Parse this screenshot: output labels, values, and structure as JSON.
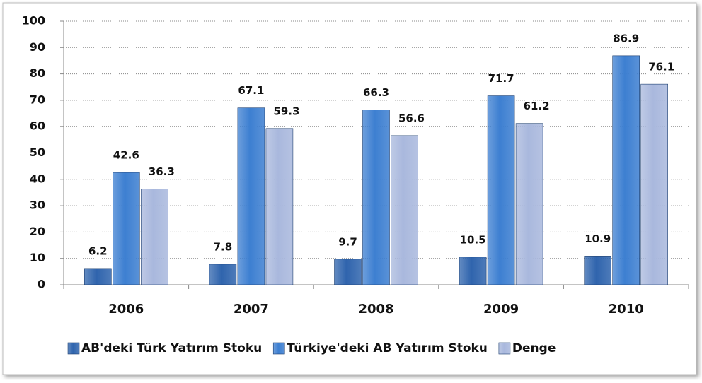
{
  "chart_data": {
    "type": "bar",
    "categories": [
      "2006",
      "2007",
      "2008",
      "2009",
      "2010"
    ],
    "series": [
      {
        "name": "AB'deki Türk Yatırım Stoku",
        "color": "#2f64ad",
        "values": [
          6.2,
          7.8,
          9.7,
          10.5,
          10.9
        ]
      },
      {
        "name": "Türkiye'deki AB Yatırım Stoku",
        "color": "#3d7fd1",
        "values": [
          42.6,
          67.1,
          66.3,
          71.7,
          86.9
        ]
      },
      {
        "name": "Denge",
        "color": "#a9b8dd",
        "values": [
          36.3,
          59.3,
          56.6,
          61.2,
          76.1
        ]
      }
    ],
    "ylim": [
      0,
      100
    ],
    "yticks": [
      0,
      10,
      20,
      30,
      40,
      50,
      60,
      70,
      80,
      90,
      100
    ],
    "grid": true,
    "legend": "bottom"
  }
}
